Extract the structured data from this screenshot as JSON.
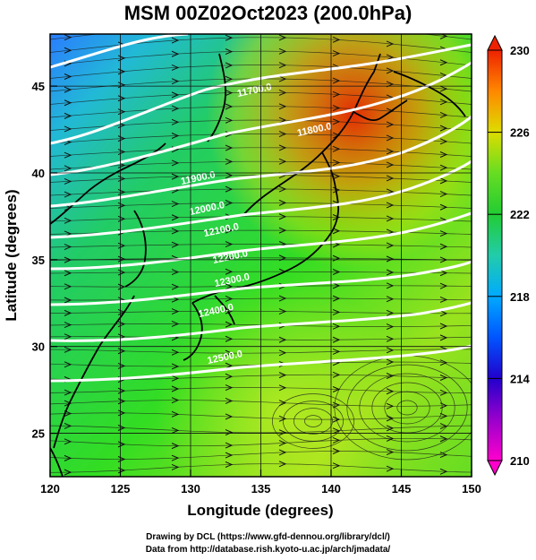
{
  "title": "MSM 00Z02Oct2023 (200.0hPa)",
  "axes": {
    "xlabel": "Longitude (degrees)",
    "ylabel": "Latitude  (degrees)",
    "xlim": [
      120,
      150
    ],
    "ylim": [
      22.5,
      48
    ],
    "xticks": [
      "120",
      "125",
      "130",
      "135",
      "140",
      "145",
      "150"
    ],
    "yticks": [
      "25",
      "30",
      "35",
      "40",
      "45"
    ],
    "grid": true
  },
  "colorbar": {
    "ticks": [
      "210",
      "214",
      "218",
      "222",
      "226",
      "230"
    ],
    "range": [
      210,
      230
    ]
  },
  "contours": [
    {
      "label": "11700.0"
    },
    {
      "label": "11800.0"
    },
    {
      "label": "11900.0"
    },
    {
      "label": "12000.0"
    },
    {
      "label": "12100.0"
    },
    {
      "label": "12200.0"
    },
    {
      "label": "12300.0"
    },
    {
      "label": "12400.0"
    },
    {
      "label": "12500.0"
    }
  ],
  "credits": {
    "line1": "Drawing by DCL (https://www.gfd-dennou.org/library/dcl/)",
    "line2": "Data from http://database.rish.kyoto-u.ac.jp/arch/jmadata/"
  },
  "colors": {
    "temp_low": "#ff33cc",
    "temp_mid": "#22cc22",
    "temp_high": "#ee2200",
    "contour": "#ffffff",
    "vector": "#1a1a1a",
    "coast": "#000000"
  }
}
